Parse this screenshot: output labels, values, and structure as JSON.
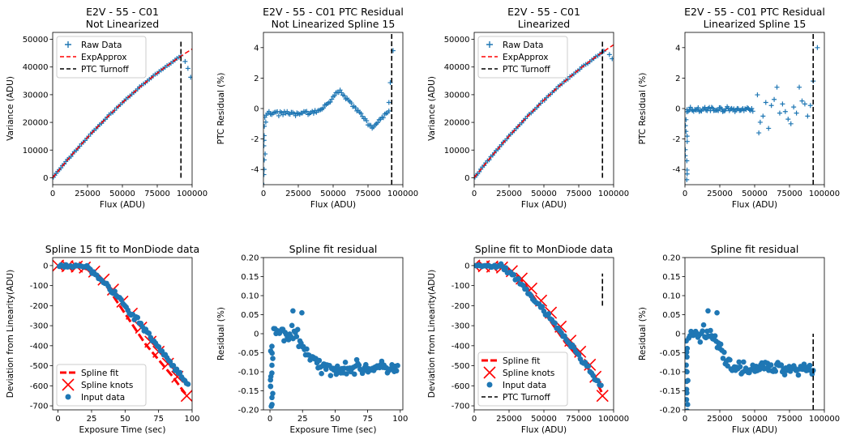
{
  "figure": {
    "background": "#ffffff"
  },
  "colors": {
    "data": "#1f77b4",
    "fit": "#ff0000",
    "turnoff": "#000000"
  },
  "chart_data": [
    {
      "id": "ptc-not-linearized",
      "type": "scatter",
      "title": [
        "E2V - 55 - C01",
        "Not Linearized"
      ],
      "xlabel": "Flux (ADU)",
      "ylabel": "Variance (ADU)",
      "xlim": [
        0,
        100000
      ],
      "ylim": [
        -2500,
        52500
      ],
      "xticks": [
        0,
        25000,
        50000,
        75000,
        100000
      ],
      "yticks": [
        0,
        10000,
        20000,
        30000,
        40000,
        50000
      ],
      "legend": {
        "position": "upper-left",
        "entries": [
          "Raw Data",
          "ExpApprox",
          "PTC Turnoff"
        ]
      },
      "series": [
        {
          "name": "Raw Data",
          "kind": "plus",
          "generator": "ptc",
          "params": {
            "n": 70,
            "a": 0.62,
            "b": -1.55e-06,
            "xmax": 92000,
            "extra": [
              [
                95000,
                42000
              ],
              [
                97000,
                39500
              ],
              [
                99000,
                36300
              ]
            ]
          }
        },
        {
          "name": "ExpApprox",
          "kind": "dashed-line",
          "generator": "quad",
          "params": {
            "a": 0.62,
            "b": -1.55e-06,
            "x0": 0,
            "x1": 100000
          }
        },
        {
          "name": "PTC Turnoff",
          "kind": "vline",
          "x": 92000,
          "y": [
            0,
            50000
          ]
        }
      ]
    },
    {
      "id": "ptc-residual-not-linearized",
      "type": "scatter",
      "title": [
        "E2V - 55 - C01 PTC Residual",
        "Not Linearized Spline 15"
      ],
      "xlabel": "Flux (ADU)",
      "ylabel": "PTC Residual (%)",
      "xlim": [
        0,
        100000
      ],
      "ylim": [
        -5,
        5
      ],
      "xticks": [
        0,
        25000,
        50000,
        75000,
        100000
      ],
      "yticks": [
        -4,
        -2,
        0,
        2,
        4
      ],
      "series": [
        {
          "name": "residual",
          "kind": "plus",
          "generator": "residNL",
          "params": {
            "n": 90
          }
        },
        {
          "name": "PTC Turnoff",
          "kind": "vline",
          "x": 92000,
          "y": [
            -5,
            5
          ]
        }
      ]
    },
    {
      "id": "ptc-linearized",
      "type": "scatter",
      "title": [
        "E2V - 55 - C01",
        "Linearized"
      ],
      "xlabel": "Flux (ADU)",
      "ylabel": "Variance (ADU)",
      "xlim": [
        0,
        100000
      ],
      "ylim": [
        -2500,
        52500
      ],
      "xticks": [
        0,
        25000,
        50000,
        75000,
        100000
      ],
      "yticks": [
        0,
        10000,
        20000,
        30000,
        40000,
        50000
      ],
      "legend": {
        "position": "upper-left",
        "entries": [
          "Raw Data",
          "ExpApprox",
          "PTC Turnoff"
        ]
      },
      "series": [
        {
          "name": "Raw Data",
          "kind": "plus",
          "generator": "ptc",
          "params": {
            "n": 70,
            "a": 0.64,
            "b": -1.6e-06,
            "xmax": 93000,
            "extra": [
              [
                97000,
                44500
              ],
              [
                99000,
                43000
              ]
            ]
          }
        },
        {
          "name": "ExpApprox",
          "kind": "dashed-line",
          "generator": "quad",
          "params": {
            "a": 0.64,
            "b": -1.6e-06,
            "x0": 0,
            "x1": 100000
          }
        },
        {
          "name": "PTC Turnoff",
          "kind": "vline",
          "x": 92000,
          "y": [
            0,
            50000
          ]
        }
      ]
    },
    {
      "id": "ptc-residual-linearized",
      "type": "scatter",
      "title": [
        "E2V - 55 - C01 PTC Residual",
        "Linearized Spline 15"
      ],
      "xlabel": "Flux (ADU)",
      "ylabel": "PTC Residual (%)",
      "xlim": [
        0,
        100000
      ],
      "ylim": [
        -5,
        5
      ],
      "xticks": [
        0,
        25000,
        50000,
        75000,
        100000
      ],
      "yticks": [
        -4,
        -2,
        0,
        2,
        4
      ],
      "series": [
        {
          "name": "residual",
          "kind": "plus",
          "generator": "residL",
          "params": {
            "n": 90
          }
        },
        {
          "name": "PTC Turnoff",
          "kind": "vline",
          "x": 92000,
          "y": [
            -5,
            5
          ]
        }
      ]
    },
    {
      "id": "spline-fit-time",
      "type": "scatter",
      "title": [
        "Spline 15 fit to MonDiode data"
      ],
      "xlabel": "Exposure Time (sec)",
      "ylabel": "Deviation from Linearity(ADU)",
      "xlim": [
        -4,
        100
      ],
      "ylim": [
        -720,
        40
      ],
      "xticks": [
        0,
        25,
        50,
        75,
        100
      ],
      "yticks": [
        0,
        -100,
        -200,
        -300,
        -400,
        -500,
        -600,
        -700
      ],
      "legend": {
        "position": "lower-left",
        "entries": [
          "Spline fit",
          "Spline knots",
          "Input data"
        ]
      },
      "series": [
        {
          "name": "Spline fit",
          "kind": "thick-dashed",
          "points": [
            [
              0,
              0
            ],
            [
              15,
              -5
            ],
            [
              25,
              -25
            ],
            [
              35,
              -90
            ],
            [
              45,
              -190
            ],
            [
              55,
              -290
            ],
            [
              65,
              -390
            ],
            [
              75,
              -470
            ],
            [
              85,
              -550
            ],
            [
              95,
              -640
            ]
          ]
        },
        {
          "name": "Spline knots",
          "kind": "x",
          "points": [
            [
              0,
              0
            ],
            [
              7,
              -3
            ],
            [
              14,
              -5
            ],
            [
              20,
              -10
            ],
            [
              27,
              -30
            ],
            [
              34,
              -70
            ],
            [
              41,
              -120
            ],
            [
              48,
              -180
            ],
            [
              55,
              -240
            ],
            [
              62,
              -310
            ],
            [
              69,
              -380
            ],
            [
              75,
              -430
            ],
            [
              82,
              -490
            ],
            [
              89,
              -555
            ],
            [
              96,
              -650
            ]
          ]
        },
        {
          "name": "Input data",
          "kind": "dot",
          "generator": "mondiode",
          "params": {
            "n": 80,
            "x0": 1,
            "x1": 97
          }
        }
      ]
    },
    {
      "id": "spline-residual-time",
      "type": "scatter",
      "title": [
        "Spline fit residual"
      ],
      "xlabel": "Exposure Time (sec)",
      "ylabel": "Residual (%)",
      "xlim": [
        -5,
        102
      ],
      "ylim": [
        -0.2,
        0.2
      ],
      "xticks": [
        0,
        25,
        50,
        75,
        100
      ],
      "yticks": [
        0.2,
        0.15,
        0.1,
        0.05,
        0.0,
        -0.05,
        -0.1,
        -0.15,
        -0.2
      ],
      "series": [
        {
          "name": "residual",
          "kind": "dot",
          "generator": "splineResid",
          "params": {
            "n": 110,
            "x1": 98
          }
        }
      ]
    },
    {
      "id": "spline-fit-flux",
      "type": "scatter",
      "title": [
        "Spline fit to MonDiode data"
      ],
      "xlabel": "Flux (ADU)",
      "ylabel": "Deviation from Linearity(ADU)",
      "xlim": [
        0,
        100000
      ],
      "ylim": [
        -720,
        40
      ],
      "xticks": [
        0,
        25000,
        50000,
        75000,
        100000
      ],
      "yticks": [
        0,
        -100,
        -200,
        -300,
        -400,
        -500,
        -600,
        -700
      ],
      "legend": {
        "position": "lower-left",
        "entries": [
          "Spline fit",
          "Spline knots",
          "Input data",
          "PTC Turnoff"
        ]
      },
      "series": [
        {
          "name": "Spline fit",
          "kind": "thick-dashed",
          "points": [
            [
              0,
              0
            ],
            [
              15000,
              -5
            ],
            [
              25000,
              -20
            ],
            [
              35000,
              -80
            ],
            [
              45000,
              -180
            ],
            [
              55000,
              -280
            ],
            [
              65000,
              -380
            ],
            [
              75000,
              -460
            ],
            [
              85000,
              -540
            ],
            [
              92000,
              -640
            ]
          ]
        },
        {
          "name": "Spline knots",
          "kind": "x",
          "points": [
            [
              0,
              0
            ],
            [
              7000,
              -3
            ],
            [
              13000,
              -5
            ],
            [
              20000,
              -10
            ],
            [
              27000,
              -28
            ],
            [
              34000,
              -65
            ],
            [
              41000,
              -115
            ],
            [
              48000,
              -175
            ],
            [
              55000,
              -235
            ],
            [
              62000,
              -305
            ],
            [
              69000,
              -375
            ],
            [
              76000,
              -430
            ],
            [
              83000,
              -495
            ],
            [
              87000,
              -555
            ],
            [
              92000,
              -650
            ]
          ]
        },
        {
          "name": "Input data",
          "kind": "dot",
          "generator": "mondiode",
          "params": {
            "n": 80,
            "x0": 1000,
            "x1": 91000
          }
        },
        {
          "name": "PTC Turnoff",
          "kind": "vline",
          "x": 92000,
          "y": [
            -200,
            -40
          ]
        }
      ]
    },
    {
      "id": "spline-residual-flux",
      "type": "scatter",
      "title": [
        "Spline fit residual"
      ],
      "xlabel": "Flux (ADU)",
      "ylabel": "Residual (%)",
      "xlim": [
        0,
        100000
      ],
      "ylim": [
        -0.2,
        0.2
      ],
      "xticks": [
        0,
        25000,
        50000,
        75000,
        100000
      ],
      "yticks": [
        0.2,
        0.15,
        0.1,
        0.05,
        0.0,
        -0.05,
        -0.1,
        -0.15,
        -0.2
      ],
      "series": [
        {
          "name": "residual",
          "kind": "dot",
          "generator": "splineResid",
          "params": {
            "n": 110,
            "x1": 92000
          }
        },
        {
          "name": "PTC Turnoff",
          "kind": "vline",
          "x": 92000,
          "y": [
            -0.2,
            0.0
          ]
        }
      ]
    }
  ]
}
